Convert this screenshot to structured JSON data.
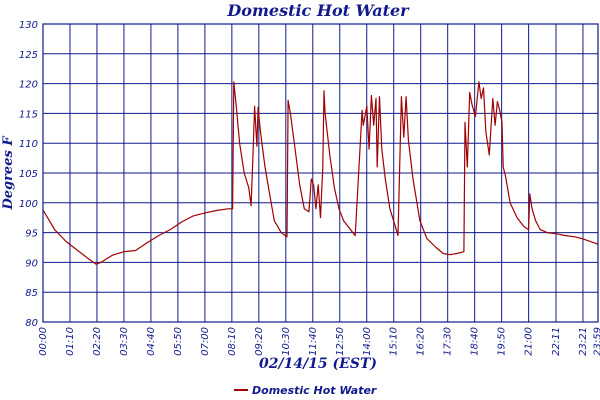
{
  "chart_data": {
    "type": "line",
    "title": "Domestic Hot Water",
    "xlabel": "02/14/15 (EST)",
    "ylabel": "Degrees F",
    "ylim": [
      80,
      130
    ],
    "yticks": [
      80,
      85,
      90,
      95,
      100,
      105,
      110,
      115,
      120,
      125,
      130
    ],
    "grid": true,
    "legend_position": "bottom-center",
    "x_tick_labels": [
      "00:00",
      "01:10",
      "02:20",
      "03:30",
      "04:40",
      "05:50",
      "07:00",
      "08:10",
      "09:20",
      "10:30",
      "11:40",
      "12:50",
      "14:00",
      "15:10",
      "16:20",
      "17:30",
      "18:40",
      "19:50",
      "21:00",
      "22:11",
      "23:21",
      "23:59"
    ],
    "x_tick_hours": [
      0,
      1.1667,
      2.3333,
      3.5,
      4.6667,
      5.8333,
      7.0,
      8.1667,
      9.3333,
      10.5,
      11.6667,
      12.8333,
      14.0,
      15.1667,
      16.3333,
      17.5,
      18.6667,
      19.8333,
      21.0,
      22.1833,
      23.35,
      23.9833
    ],
    "x_range_hours": [
      0,
      24
    ],
    "series": [
      {
        "name": "Domestic Hot Water",
        "color": "#a00000",
        "x": [
          0,
          0.2,
          0.5,
          1.0,
          1.5,
          2.0,
          2.3,
          2.5,
          3.0,
          3.5,
          4.0,
          4.5,
          5.0,
          5.5,
          6.0,
          6.5,
          7.0,
          7.5,
          8.0,
          8.2,
          8.25,
          8.35,
          8.5,
          8.7,
          8.9,
          9.0,
          9.1,
          9.15,
          9.25,
          9.3,
          9.4,
          9.6,
          9.8,
          10.0,
          10.3,
          10.55,
          10.6,
          10.7,
          10.9,
          11.1,
          11.3,
          11.5,
          11.6,
          11.7,
          11.8,
          11.9,
          12.0,
          12.1,
          12.15,
          12.2,
          12.4,
          12.6,
          12.8,
          13.0,
          13.2,
          13.5,
          13.8,
          13.85,
          14.0,
          14.1,
          14.2,
          14.3,
          14.4,
          14.45,
          14.55,
          14.65,
          14.8,
          15.0,
          15.2,
          15.35,
          15.5,
          15.6,
          15.7,
          15.8,
          16.0,
          16.3,
          16.6,
          17.0,
          17.3,
          17.6,
          17.9,
          18.2,
          18.25,
          18.35,
          18.45,
          18.55,
          18.7,
          18.85,
          18.95,
          19.05,
          19.15,
          19.3,
          19.45,
          19.55,
          19.65,
          19.75,
          19.85,
          19.9,
          20.0,
          20.2,
          20.5,
          20.8,
          21.0,
          21.05,
          21.15,
          21.3,
          21.5,
          21.8,
          22.2,
          22.6,
          23.0,
          23.3,
          23.6,
          23.9,
          24.0
        ],
        "y": [
          98.8,
          97.5,
          95.5,
          93.5,
          92.0,
          90.5,
          89.7,
          90.0,
          91.2,
          91.8,
          92.0,
          93.3,
          94.5,
          95.5,
          96.8,
          97.8,
          98.3,
          98.7,
          99.0,
          99.0,
          120.3,
          116.5,
          110.0,
          105.0,
          102.5,
          99.5,
          110.0,
          116.2,
          109.5,
          116.0,
          112.0,
          106.0,
          101.5,
          97.0,
          95.0,
          94.3,
          117.2,
          115.0,
          109.0,
          103.0,
          99.0,
          98.5,
          104.0,
          103.0,
          99.0,
          103.0,
          97.5,
          106.0,
          118.8,
          115.0,
          108.0,
          102.5,
          99.0,
          97.0,
          96.0,
          94.5,
          115.5,
          113.0,
          116.2,
          109.0,
          118.0,
          113.0,
          117.5,
          106.0,
          117.8,
          109.0,
          104.0,
          99.0,
          96.5,
          94.5,
          117.8,
          111.0,
          117.8,
          110.5,
          104.0,
          97.0,
          94.0,
          92.5,
          91.5,
          91.3,
          91.5,
          91.8,
          113.5,
          106.0,
          118.5,
          116.5,
          114.5,
          120.3,
          117.5,
          119.3,
          112.0,
          108.0,
          117.5,
          113.0,
          117.0,
          115.5,
          113.5,
          106.0,
          104.5,
          100.0,
          97.5,
          96.0,
          95.5,
          101.5,
          99.0,
          97.0,
          95.5,
          95.0,
          94.8,
          94.5,
          94.3,
          94.0,
          93.6,
          93.2,
          93.0
        ]
      }
    ]
  }
}
